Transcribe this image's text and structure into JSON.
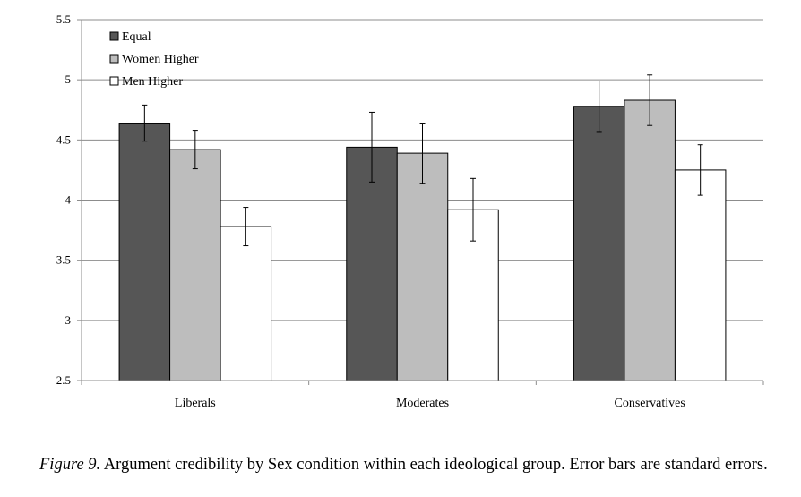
{
  "chart_data": {
    "type": "bar",
    "categories": [
      "Liberals",
      "Moderates",
      "Conservatives"
    ],
    "series": [
      {
        "name": "Equal",
        "values": [
          4.64,
          4.44,
          4.78
        ],
        "err": [
          0.15,
          0.29,
          0.21
        ],
        "color": "#565656"
      },
      {
        "name": "Women Higher",
        "values": [
          4.42,
          4.39,
          4.83
        ],
        "err": [
          0.16,
          0.25,
          0.21
        ],
        "color": "#bdbdbd"
      },
      {
        "name": "Men Higher",
        "values": [
          3.78,
          3.92,
          4.25
        ],
        "err": [
          0.16,
          0.26,
          0.21
        ],
        "color": "#ffffff"
      }
    ],
    "ylim": [
      2.5,
      5.5
    ],
    "yticks": [
      "2.5",
      "3",
      "3.5",
      "4",
      "4.5",
      "5",
      "5.5"
    ],
    "grid": true,
    "legend_position": "top-left",
    "error_bars": "standard errors"
  },
  "caption": {
    "figure_label": "Figure 9.",
    "text": " Argument credibility by Sex condition within each ideological group. Error bars are standard errors."
  }
}
